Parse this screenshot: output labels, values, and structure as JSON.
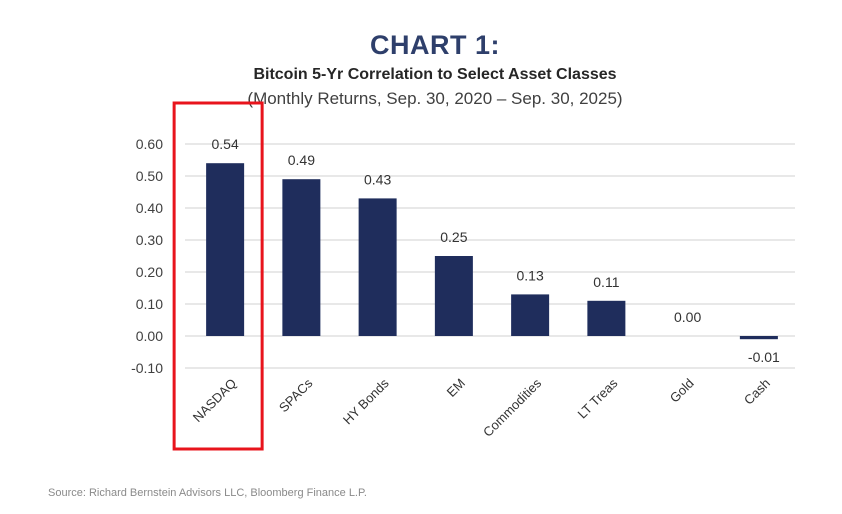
{
  "header": {
    "title": "CHART 1:",
    "subtitle": "Bitcoin 5-Yr Correlation to Select Asset Classes",
    "subtitle2": "(Monthly Returns, Sep. 30, 2020 – Sep. 30, 2025)"
  },
  "source": "Source: Richard Bernstein Advisors LLC, Bloomberg Finance L.P.",
  "colors": {
    "bar": "#1f2d5c",
    "highlight": "#e8141c",
    "grid": "#d9d9d9",
    "title": "#2e3f6b"
  },
  "highlighted_category": "NASDAQ",
  "chart_data": {
    "type": "bar",
    "title": "CHART 1:",
    "subtitle": "Bitcoin 5-Yr Correlation to Select Asset Classes (Monthly Returns, Sep. 30, 2020 – Sep. 30, 2025)",
    "xlabel": "",
    "ylabel": "",
    "categories": [
      "NASDAQ",
      "SPACs",
      "HY Bonds",
      "EM",
      "Commodities",
      "LT Treas",
      "Gold",
      "Cash"
    ],
    "values": [
      0.54,
      0.49,
      0.43,
      0.25,
      0.13,
      0.11,
      0.0,
      -0.01
    ],
    "data_labels": [
      "0.54",
      "0.49",
      "0.43",
      "0.25",
      "0.13",
      "0.11",
      "0.00",
      "-0.01"
    ],
    "ylim": [
      -0.1,
      0.6
    ],
    "yticks": [
      0.6,
      0.5,
      0.4,
      0.3,
      0.2,
      0.1,
      0.0,
      -0.1
    ],
    "ytick_labels": [
      "0.60",
      "0.50",
      "0.40",
      "0.30",
      "0.20",
      "0.10",
      "0.00",
      "-0.10"
    ],
    "grid": true,
    "legend": "none"
  }
}
